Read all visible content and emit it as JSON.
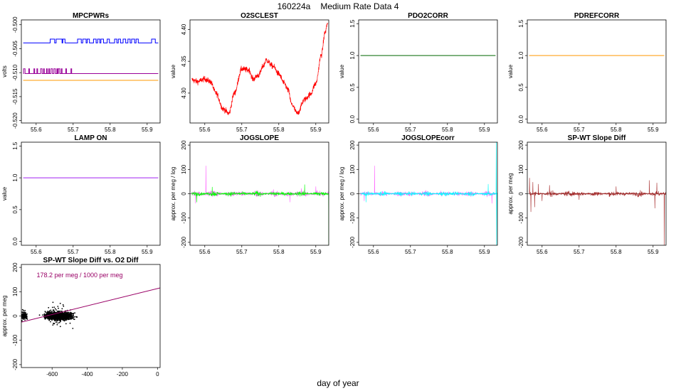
{
  "figure": {
    "suptitle_id": "160224a",
    "suptitle_text": "Medium Rate Data 4",
    "xlabel": "day of year"
  },
  "colors": {
    "blue": "#0000ff",
    "purple": "#990099",
    "orange": "#ff9900",
    "red": "#ff0000",
    "green": "#006600",
    "magenta": "#ff66ff",
    "lime": "#00ff00",
    "cyan": "#00ffff",
    "brown": "#a52a2a",
    "lamp": "#a020f0",
    "fitline": "#990066"
  },
  "chart_data": [
    {
      "id": "p1",
      "type": "line",
      "title": "MPCPWRs",
      "ylabel": "volts",
      "xlim": [
        55.56,
        55.935
      ],
      "ylim": [
        -0.5205,
        -0.499
      ],
      "xticks": [
        55.6,
        55.7,
        55.8,
        55.9
      ],
      "xtick_labels": [
        "55.6",
        "55.7",
        "55.8",
        "55.9"
      ],
      "yticks": [
        -0.52,
        -0.515,
        -0.51,
        -0.505,
        -0.5
      ],
      "ytick_labels": [
        "-0.520",
        "-0.515",
        "-0.510",
        "-0.505",
        "-0.500"
      ],
      "series": [
        {
          "name": "blue",
          "color": "#0000ff",
          "base": -0.5038,
          "alt": -0.503,
          "x_from": 55.565,
          "x_to": 55.93,
          "alt_intervals": [
            [
              55.638,
              55.65
            ],
            [
              55.654,
              55.67
            ],
            [
              55.672,
              55.678
            ],
            [
              55.712,
              55.722
            ],
            [
              55.726,
              55.735
            ],
            [
              55.738,
              55.744
            ],
            [
              55.755,
              55.762
            ],
            [
              55.766,
              55.772
            ],
            [
              55.775,
              55.782
            ],
            [
              55.792,
              55.798
            ],
            [
              55.812,
              55.818
            ],
            [
              55.822,
              55.828
            ],
            [
              55.835,
              55.842
            ],
            [
              55.848,
              55.854
            ],
            [
              55.858,
              55.866
            ],
            [
              55.87,
              55.876
            ],
            [
              55.912,
              55.922
            ]
          ]
        },
        {
          "name": "purple",
          "color": "#990099",
          "base": -0.5102,
          "alt": -0.5092,
          "x_from": 55.565,
          "x_to": 55.93,
          "alt_intervals": [
            [
              55.566,
              55.57
            ],
            [
              55.58,
              55.582
            ],
            [
              55.594,
              55.596
            ],
            [
              55.602,
              55.604
            ],
            [
              55.612,
              55.616
            ],
            [
              55.62,
              55.622
            ],
            [
              55.628,
              55.63
            ],
            [
              55.634,
              55.636
            ],
            [
              55.64,
              55.644
            ],
            [
              55.648,
              55.652
            ],
            [
              55.656,
              55.658
            ],
            [
              55.66,
              55.664
            ],
            [
              55.668,
              55.67
            ],
            [
              55.68,
              55.682
            ],
            [
              55.694,
              55.696
            ]
          ]
        },
        {
          "name": "orange",
          "color": "#ff9900",
          "base": -0.5116,
          "x_from": 55.565,
          "x_to": 55.93
        }
      ]
    },
    {
      "id": "p2",
      "type": "line",
      "title": "O2SCLEST",
      "ylabel": "value",
      "xlim": [
        55.56,
        55.935
      ],
      "ylim": [
        4.253,
        4.415
      ],
      "xticks": [
        55.6,
        55.7,
        55.8,
        55.9
      ],
      "xtick_labels": [
        "55.6",
        "55.7",
        "55.8",
        "55.9"
      ],
      "yticks": [
        4.3,
        4.35,
        4.4
      ],
      "ytick_labels": [
        "4.30",
        "4.35",
        "4.40"
      ],
      "series": [
        {
          "name": "O2SCLEST",
          "color": "#ff0000",
          "noise": 0.0045,
          "x": [
            55.565,
            55.58,
            55.6,
            55.615,
            55.63,
            55.65,
            55.665,
            55.68,
            55.7,
            55.72,
            55.73,
            55.745,
            55.76,
            55.765,
            55.785,
            55.8,
            55.815,
            55.825,
            55.835,
            55.85,
            55.87,
            55.885,
            55.9,
            55.915,
            55.925,
            55.932
          ],
          "y": [
            4.321,
            4.318,
            4.322,
            4.318,
            4.3,
            4.275,
            4.268,
            4.3,
            4.338,
            4.336,
            4.322,
            4.328,
            4.344,
            4.352,
            4.342,
            4.33,
            4.315,
            4.305,
            4.282,
            4.268,
            4.29,
            4.298,
            4.315,
            4.36,
            4.395,
            4.41
          ]
        }
      ]
    },
    {
      "id": "p3",
      "type": "line",
      "title": "PDO2CORR",
      "ylabel": "value",
      "xlim": [
        55.56,
        55.935
      ],
      "ylim": [
        -0.06,
        1.56
      ],
      "xticks": [
        55.6,
        55.7,
        55.8,
        55.9
      ],
      "xtick_labels": [
        "55.6",
        "55.7",
        "55.8",
        "55.9"
      ],
      "yticks": [
        0,
        0.5,
        1,
        1.5
      ],
      "ytick_labels": [
        "0.0",
        "0.5",
        "1.0",
        "1.5"
      ],
      "series": [
        {
          "name": "PDO2CORR",
          "color": "#006600",
          "x": [
            55.565,
            55.93
          ],
          "y": [
            1.0,
            1.0
          ]
        }
      ]
    },
    {
      "id": "p4",
      "type": "line",
      "title": "PDREFCORR",
      "ylabel": "value",
      "xlim": [
        55.56,
        55.935
      ],
      "ylim": [
        -0.06,
        1.56
      ],
      "xticks": [
        55.6,
        55.7,
        55.8,
        55.9
      ],
      "xtick_labels": [
        "55.6",
        "55.7",
        "55.8",
        "55.9"
      ],
      "yticks": [
        0,
        0.5,
        1,
        1.5
      ],
      "ytick_labels": [
        "0.0",
        "0.5",
        "1.0",
        "1.5"
      ],
      "series": [
        {
          "name": "PDREFCORR",
          "color": "#ff9900",
          "x": [
            55.565,
            55.93
          ],
          "y": [
            1.0,
            1.0
          ]
        }
      ]
    },
    {
      "id": "p5",
      "type": "line",
      "title": "LAMP ON",
      "ylabel": "value",
      "xlim": [
        55.56,
        55.935
      ],
      "ylim": [
        -0.06,
        1.56
      ],
      "xticks": [
        55.6,
        55.7,
        55.8,
        55.9
      ],
      "xtick_labels": [
        "55.6",
        "55.7",
        "55.8",
        "55.9"
      ],
      "yticks": [
        0,
        0.5,
        1,
        1.5
      ],
      "ytick_labels": [
        "0.0",
        "0.5",
        "1.0",
        "1.5"
      ],
      "series": [
        {
          "name": "LAMP ON",
          "color": "#a020f0",
          "x": [
            55.565,
            55.93
          ],
          "y": [
            1.0,
            1.0
          ]
        }
      ]
    },
    {
      "id": "p6",
      "type": "line",
      "title": "JOGSLOPE",
      "ylabel": "approx. per meg / log",
      "xlim": [
        55.56,
        55.935
      ],
      "ylim": [
        -212,
        212
      ],
      "zero_line": true,
      "xticks": [
        55.6,
        55.7,
        55.8,
        55.9
      ],
      "xtick_labels": [
        "55.6",
        "55.7",
        "55.8",
        "55.9"
      ],
      "yticks": [
        -200,
        -100,
        0,
        100,
        200
      ],
      "ytick_labels": [
        "-200",
        "-100",
        "0",
        "100",
        "200"
      ],
      "series": [
        {
          "name": "JOGSLOPE raw",
          "color": "#ff66ff",
          "amp": 16,
          "spikes": [
            [
              55.603,
              115
            ],
            [
              55.575,
              -40
            ],
            [
              55.83,
              -35
            ],
            [
              55.9,
              30
            ]
          ]
        },
        {
          "name": "JOGSLOPE",
          "color": "#00ff00",
          "amp": 12,
          "spikes": [
            [
              55.935,
              -212
            ],
            [
              55.578,
              -35
            ],
            [
              55.87,
              38
            ],
            [
              55.62,
              28
            ]
          ]
        }
      ]
    },
    {
      "id": "p7",
      "type": "line",
      "title": "JOGSLOPEcorr",
      "ylabel": "approx. per meg / log",
      "xlim": [
        55.56,
        55.935
      ],
      "ylim": [
        -212,
        212
      ],
      "zero_line": true,
      "xticks": [
        55.6,
        55.7,
        55.8,
        55.9
      ],
      "xtick_labels": [
        "55.6",
        "55.7",
        "55.8",
        "55.9"
      ],
      "yticks": [
        -200,
        -100,
        0,
        100,
        200
      ],
      "ytick_labels": [
        "-200",
        "-100",
        "0",
        "100",
        "200"
      ],
      "series": [
        {
          "name": "JOGSLOPE raw",
          "color": "#ff66ff",
          "amp": 14,
          "spikes": [
            [
              55.603,
              115
            ],
            [
              55.92,
              -40
            ],
            [
              55.575,
              -30
            ]
          ]
        },
        {
          "name": "JOGSLOPEcorr",
          "color": "#00ffff",
          "amp": 11,
          "spikes": [
            [
              55.932,
              212
            ],
            [
              55.933,
              -212
            ],
            [
              55.58,
              -35
            ],
            [
              55.91,
              40
            ]
          ]
        }
      ]
    },
    {
      "id": "p8",
      "type": "line",
      "title": "SP-WT Slope Diff",
      "ylabel": "approx. per meg",
      "xlim": [
        55.56,
        55.935
      ],
      "ylim": [
        -212,
        212
      ],
      "zero_line": true,
      "xticks": [
        55.6,
        55.7,
        55.8,
        55.9
      ],
      "xtick_labels": [
        "55.6",
        "55.7",
        "55.8",
        "55.9"
      ],
      "yticks": [
        -200,
        -100,
        0,
        100,
        200
      ],
      "ytick_labels": [
        "-200",
        "-100",
        "0",
        "100",
        "200"
      ],
      "series": [
        {
          "name": "SP-WT Slope Diff",
          "color": "#a52a2a",
          "amp": 13,
          "spikes": [
            [
              55.566,
              65
            ],
            [
              55.57,
              -75
            ],
            [
              55.575,
              48
            ],
            [
              55.58,
              -55
            ],
            [
              55.59,
              40
            ],
            [
              55.6,
              -30
            ],
            [
              55.62,
              35
            ],
            [
              55.7,
              -25
            ],
            [
              55.8,
              30
            ],
            [
              55.89,
              55
            ],
            [
              55.905,
              -60
            ],
            [
              55.91,
              45
            ],
            [
              55.93,
              -212
            ]
          ]
        }
      ]
    },
    {
      "id": "p9",
      "type": "scatter",
      "title": "SP-WT Slope Diff vs. O2 Diff",
      "ylabel": "approx. per meg",
      "xlim": [
        -775,
        15
      ],
      "ylim": [
        -212,
        212
      ],
      "xticks": [
        -600,
        -400,
        -200,
        0
      ],
      "xtick_labels": [
        "-600",
        "-400",
        "-200",
        "0"
      ],
      "yticks": [
        -200,
        -100,
        0,
        100,
        200
      ],
      "ytick_labels": [
        "-200",
        "-100",
        "0",
        "100",
        "200"
      ],
      "annotation": "178.2 per meg / 1000 per meg",
      "fit": {
        "slope": 0.1782,
        "intercept": 113,
        "x_from": -775,
        "x_to": 15
      },
      "clusters": [
        {
          "x_center": -760,
          "x_spread": 15,
          "y_spread": 10,
          "n": 320
        },
        {
          "x_center": -560,
          "x_spread": 70,
          "y_spread": 14,
          "n": 1600
        }
      ]
    }
  ]
}
